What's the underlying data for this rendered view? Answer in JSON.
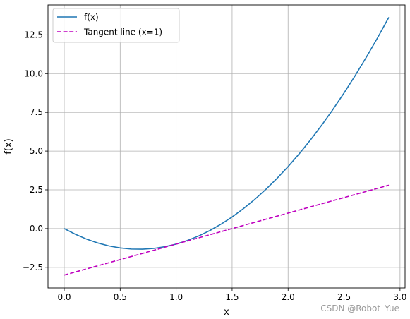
{
  "watermark": "CSDN @Robot_Yue",
  "chart_data": {
    "type": "line",
    "xlabel": "x",
    "ylabel": "f(x)",
    "xlim": [
      -0.145,
      3.045
    ],
    "ylim": [
      -3.83,
      14.43
    ],
    "xticks": [
      0.0,
      0.5,
      1.0,
      1.5,
      2.0,
      2.5,
      3.0
    ],
    "xtick_labels": [
      "0.0",
      "0.5",
      "1.0",
      "1.5",
      "2.0",
      "2.5",
      "3.0"
    ],
    "yticks": [
      -2.5,
      0.0,
      2.5,
      5.0,
      7.5,
      10.0,
      12.5
    ],
    "ytick_labels": [
      "−2.5",
      "0.0",
      "2.5",
      "5.0",
      "7.5",
      "10.0",
      "12.5"
    ],
    "grid": true,
    "legend_position": "top-left",
    "series": [
      {
        "name": "f(x)",
        "color": "#1f77b4",
        "style": "solid",
        "x": [
          0.0,
          0.1,
          0.2,
          0.3,
          0.4,
          0.5,
          0.6,
          0.7,
          0.8,
          0.9,
          1.0,
          1.1,
          1.2,
          1.3,
          1.4,
          1.5,
          1.6,
          1.7,
          1.8,
          1.9,
          2.0,
          2.1,
          2.2,
          2.3,
          2.4,
          2.5,
          2.6,
          2.7,
          2.8,
          2.9
        ],
        "y": [
          0.0,
          -0.37,
          -0.68,
          -0.93,
          -1.12,
          -1.25,
          -1.32,
          -1.33,
          -1.28,
          -1.17,
          -1.0,
          -0.77,
          -0.48,
          -0.13,
          0.28,
          0.75,
          1.28,
          1.87,
          2.52,
          3.23,
          4.0,
          4.83,
          5.72,
          6.67,
          7.68,
          8.75,
          9.88,
          11.07,
          12.32,
          13.63
        ]
      },
      {
        "name": "Tangent line (x=1)",
        "color": "#bf00bf",
        "style": "dashed",
        "x": [
          0.0,
          2.9
        ],
        "y": [
          -3.0,
          2.8
        ]
      }
    ]
  }
}
